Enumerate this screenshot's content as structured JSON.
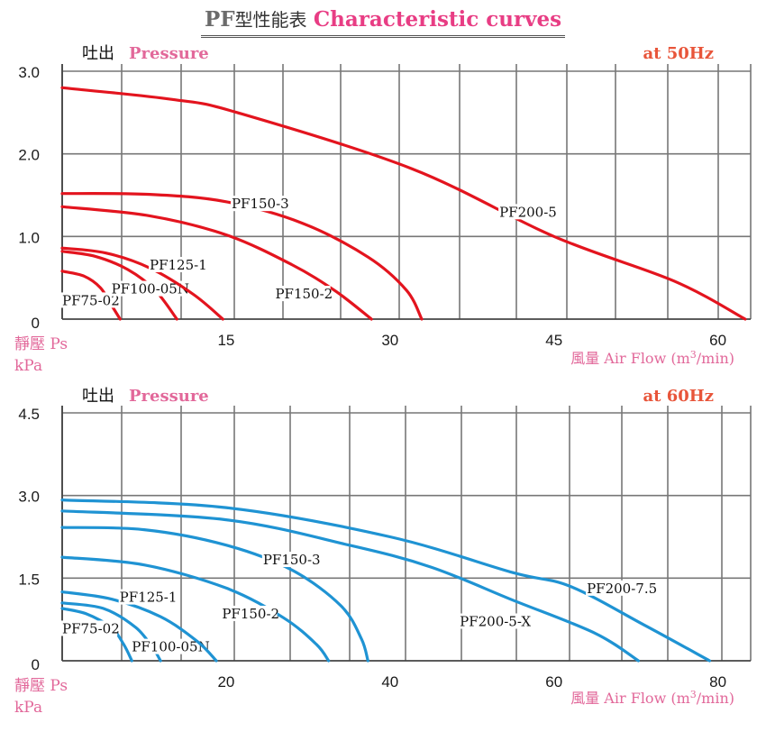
{
  "title": {
    "prefix": "PF",
    "chinese": "型性能表",
    "english": "Characteristic curves"
  },
  "colors": {
    "red": "#e3141e",
    "blue": "#1f93d3",
    "pink": "#e2689a",
    "orange": "#e8553a",
    "grid": "#777777"
  },
  "chart_data": [
    {
      "type": "line",
      "ylabel_cn": "吐出",
      "ylabel_en": "Pressure",
      "frequency_label": "at  50Hz",
      "static_label": "靜壓 Ps",
      "unit_label": "kPa",
      "xlabel_cn": "風量",
      "xlabel_en": "Air Flow (m",
      "xlabel_sup": "3",
      "xlabel_end": "/min)",
      "xlim": [
        0,
        63
      ],
      "ylim": [
        0,
        3.0
      ],
      "grid": true,
      "y_ticks": [
        {
          "value": 0,
          "label": "0"
        },
        {
          "value": 1.0,
          "label": "1.0"
        },
        {
          "value": 2.0,
          "label": "2.0"
        },
        {
          "value": 3.0,
          "label": "3.0"
        }
      ],
      "x_ticks": [
        {
          "value": 15,
          "label": "15"
        },
        {
          "value": 30,
          "label": "30"
        },
        {
          "value": 45,
          "label": "45"
        },
        {
          "value": 60,
          "label": "60"
        }
      ],
      "series": [
        {
          "name": "PF75-02",
          "points": [
            [
              0,
              0.58
            ],
            [
              2,
              0.52
            ],
            [
              3.5,
              0.38
            ],
            [
              4.6,
              0.15
            ],
            [
              5.3,
              0
            ]
          ],
          "label_at": [
            0,
            0.17
          ]
        },
        {
          "name": "PF100-05N",
          "points": [
            [
              0,
              0.82
            ],
            [
              3,
              0.76
            ],
            [
              6,
              0.6
            ],
            [
              8.5,
              0.35
            ],
            [
              10.5,
              0
            ]
          ],
          "label_at": [
            4.5,
            0.31
          ]
        },
        {
          "name": "PF125-1",
          "points": [
            [
              0,
              0.86
            ],
            [
              4,
              0.8
            ],
            [
              8,
              0.62
            ],
            [
              12,
              0.3
            ],
            [
              14.7,
              0
            ]
          ],
          "label_at": [
            8,
            0.6
          ]
        },
        {
          "name": "PF150-2",
          "points": [
            [
              0,
              1.36
            ],
            [
              8,
              1.25
            ],
            [
              15,
              1.02
            ],
            [
              21,
              0.66
            ],
            [
              25,
              0.34
            ],
            [
              28.3,
              0
            ]
          ],
          "label_at": [
            19.5,
            0.25
          ]
        },
        {
          "name": "PF150-3",
          "points": [
            [
              0,
              1.52
            ],
            [
              8,
              1.51
            ],
            [
              15,
              1.42
            ],
            [
              22,
              1.16
            ],
            [
              28,
              0.75
            ],
            [
              31.5,
              0.35
            ],
            [
              32.9,
              0
            ]
          ],
          "label_at": [
            15.5,
            1.34
          ]
        },
        {
          "name": "PF200-5",
          "points": [
            [
              0,
              2.8
            ],
            [
              10,
              2.66
            ],
            [
              16,
              2.5
            ],
            [
              32,
              1.82
            ],
            [
              45,
              1.0
            ],
            [
              56,
              0.46
            ],
            [
              62.5,
              0
            ]
          ],
          "label_at": [
            40,
            1.24
          ]
        }
      ]
    },
    {
      "type": "line",
      "ylabel_cn": "吐出",
      "ylabel_en": "Pressure",
      "frequency_label": "at  60Hz",
      "static_label": "靜壓 Ps",
      "unit_label": "kPa",
      "xlabel_cn": "風量",
      "xlabel_en": "Air Flow (m",
      "xlabel_sup": "3",
      "xlabel_end": "/min)",
      "xlim": [
        0,
        84
      ],
      "ylim": [
        0,
        4.5
      ],
      "grid": true,
      "y_ticks": [
        {
          "value": 0,
          "label": "0"
        },
        {
          "value": 1.5,
          "label": "1.5"
        },
        {
          "value": 3.0,
          "label": "3.0"
        },
        {
          "value": 4.5,
          "label": "4.5"
        }
      ],
      "x_ticks": [
        {
          "value": 20,
          "label": "20"
        },
        {
          "value": 40,
          "label": "40"
        },
        {
          "value": 60,
          "label": "60"
        },
        {
          "value": 80,
          "label": "80"
        }
      ],
      "series": [
        {
          "name": "PF75-02",
          "points": [
            [
              0,
              0.95
            ],
            [
              3,
              0.85
            ],
            [
              6,
              0.6
            ],
            [
              7.5,
              0.3
            ],
            [
              8.5,
              0
            ]
          ],
          "label_at": [
            0,
            0.5
          ]
        },
        {
          "name": "PF100-05N",
          "points": [
            [
              0,
              1.05
            ],
            [
              5,
              0.95
            ],
            [
              9,
              0.6
            ],
            [
              11.2,
              0.2
            ],
            [
              12,
              0
            ]
          ],
          "label_at": [
            8.5,
            0.17
          ]
        },
        {
          "name": "PF125-1",
          "points": [
            [
              0,
              1.25
            ],
            [
              6,
              1.12
            ],
            [
              12,
              0.8
            ],
            [
              16.5,
              0.35
            ],
            [
              18.8,
              0
            ]
          ],
          "label_at": [
            7,
            1.07
          ]
        },
        {
          "name": "PF150-2",
          "points": [
            [
              0,
              1.88
            ],
            [
              10,
              1.74
            ],
            [
              20,
              1.32
            ],
            [
              27,
              0.78
            ],
            [
              31,
              0.3
            ],
            [
              32.5,
              0
            ]
          ],
          "label_at": [
            19.5,
            0.77
          ]
        },
        {
          "name": "PF150-3",
          "points": [
            [
              0,
              2.42
            ],
            [
              10,
              2.38
            ],
            [
              20,
              2.1
            ],
            [
              28,
              1.65
            ],
            [
              34,
              1.0
            ],
            [
              36.5,
              0.4
            ],
            [
              37.3,
              0
            ]
          ],
          "label_at": [
            24.5,
            1.75
          ]
        },
        {
          "name": "PF200-5-X",
          "points": [
            [
              0,
              2.72
            ],
            [
              20,
              2.56
            ],
            [
              35,
              2.1
            ],
            [
              45,
              1.7
            ],
            [
              55,
              1.1
            ],
            [
              65,
              0.5
            ],
            [
              70.3,
              0
            ]
          ],
          "label_at": [
            48.5,
            0.63
          ]
        },
        {
          "name": "PF200-7.5",
          "points": [
            [
              0,
              2.92
            ],
            [
              20,
              2.78
            ],
            [
              40,
              2.25
            ],
            [
              55,
              1.6
            ],
            [
              62,
              1.35
            ],
            [
              71,
              0.65
            ],
            [
              79,
              0
            ]
          ],
          "label_at": [
            64,
            1.23
          ]
        }
      ]
    }
  ]
}
